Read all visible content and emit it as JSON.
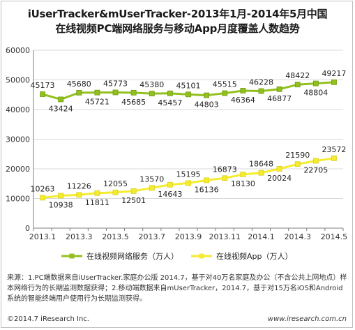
{
  "title_line1": "iUserTracker&mUserTracker-2013年1月-2014年5月中国",
  "title_line2": "在线视频PC端网络服务与移动App月度覆盖人数趋势",
  "chart_data": {
    "type": "line",
    "ylim": [
      0,
      60000
    ],
    "yticks": [
      "0",
      "10000",
      "20000",
      "30000",
      "40000",
      "50000",
      "60000"
    ],
    "x": [
      "2013.1",
      "2013.2",
      "2013.3",
      "2013.4",
      "2013.5",
      "2013.6",
      "2013.7",
      "2013.8",
      "2013.9",
      "2013.10",
      "2013.11",
      "2013.12",
      "2014.1",
      "2014.2",
      "2014.3",
      "2014.4",
      "2014.5"
    ],
    "xtick_labels": [
      "2013.1",
      "",
      "2013.3",
      "",
      "2013.5",
      "",
      "2013.7",
      "",
      "2013.9",
      "",
      "2013.11",
      "",
      "2014.1",
      "",
      "2014.3",
      "",
      "2014.5"
    ],
    "grid": true,
    "legend_position": "bottom",
    "series": [
      {
        "name": "在线视频网络服务（万人）",
        "color": "#92c01f",
        "values": [
          45173,
          43424,
          45680,
          45721,
          45773,
          45685,
          45380,
          45457,
          45101,
          44803,
          45515,
          46364,
          46228,
          46877,
          48422,
          48804,
          49217
        ],
        "label_pos": [
          "above",
          "below",
          "above",
          "below",
          "above",
          "below",
          "above",
          "below",
          "above",
          "below",
          "above",
          "below",
          "above",
          "below",
          "above",
          "below",
          "above"
        ]
      },
      {
        "name": "在线视频App（万人）",
        "color": "#f5ec2f",
        "values": [
          10263,
          10938,
          11226,
          11811,
          12055,
          12501,
          13570,
          14643,
          15195,
          16136,
          16873,
          18130,
          18648,
          20024,
          21590,
          22705,
          23572
        ],
        "label_pos": [
          "above",
          "below",
          "above",
          "below",
          "above",
          "below",
          "above",
          "below",
          "above",
          "below",
          "above",
          "below",
          "above",
          "below",
          "above",
          "below",
          "above"
        ]
      }
    ]
  },
  "source_text": "来源：1.PC端数据来自iUserTracker.家庭办公版 2014.7，基于对40万名家庭及办公（不含公共上网地点）样本网络行为的长期监测数据获得；2.移动端数据来自mUserTracker，2014.7，基于对15万名iOS和Android系统的智能终端用户使用行为长期监测获得。",
  "copyright": "©2014.7 iResearch Inc.",
  "website": "www.iresearch.com.cn"
}
